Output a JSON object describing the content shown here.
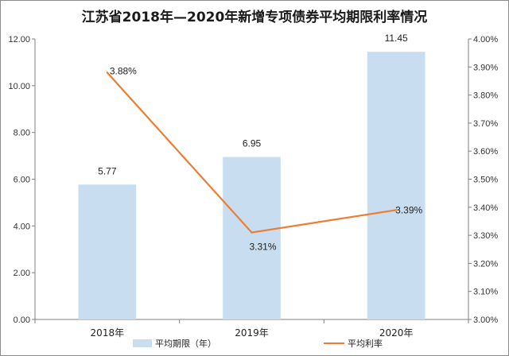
{
  "chart_data": {
    "type": "bar",
    "title": "江苏省2018年—2020年新增专项债券平均期限利率情况",
    "categories": [
      "2018年",
      "2019年",
      "2020年"
    ],
    "series": [
      {
        "name": "平均期限（年）",
        "type": "bar",
        "axis": "left",
        "color": "#c9ddf1",
        "values": [
          5.77,
          6.95,
          11.45
        ],
        "labels": [
          "5.77",
          "6.95",
          "11.45"
        ]
      },
      {
        "name": "平均利率",
        "type": "line",
        "axis": "right",
        "color": "#ed7d31",
        "values": [
          3.88,
          3.31,
          3.39
        ],
        "labels": [
          "3.88%",
          "3.31%",
          "3.39%"
        ]
      }
    ],
    "y_left": {
      "min": 0,
      "max": 12,
      "step": 2,
      "ticks": [
        "0.00",
        "2.00",
        "4.00",
        "6.00",
        "8.00",
        "10.00",
        "12.00"
      ]
    },
    "y_right": {
      "min": 3.0,
      "max": 4.0,
      "step": 0.1,
      "ticks": [
        "3.00%",
        "3.10%",
        "3.20%",
        "3.30%",
        "3.40%",
        "3.50%",
        "3.60%",
        "3.70%",
        "3.80%",
        "3.90%",
        "4.00%"
      ]
    },
    "grid": false,
    "legend": "bottom"
  }
}
